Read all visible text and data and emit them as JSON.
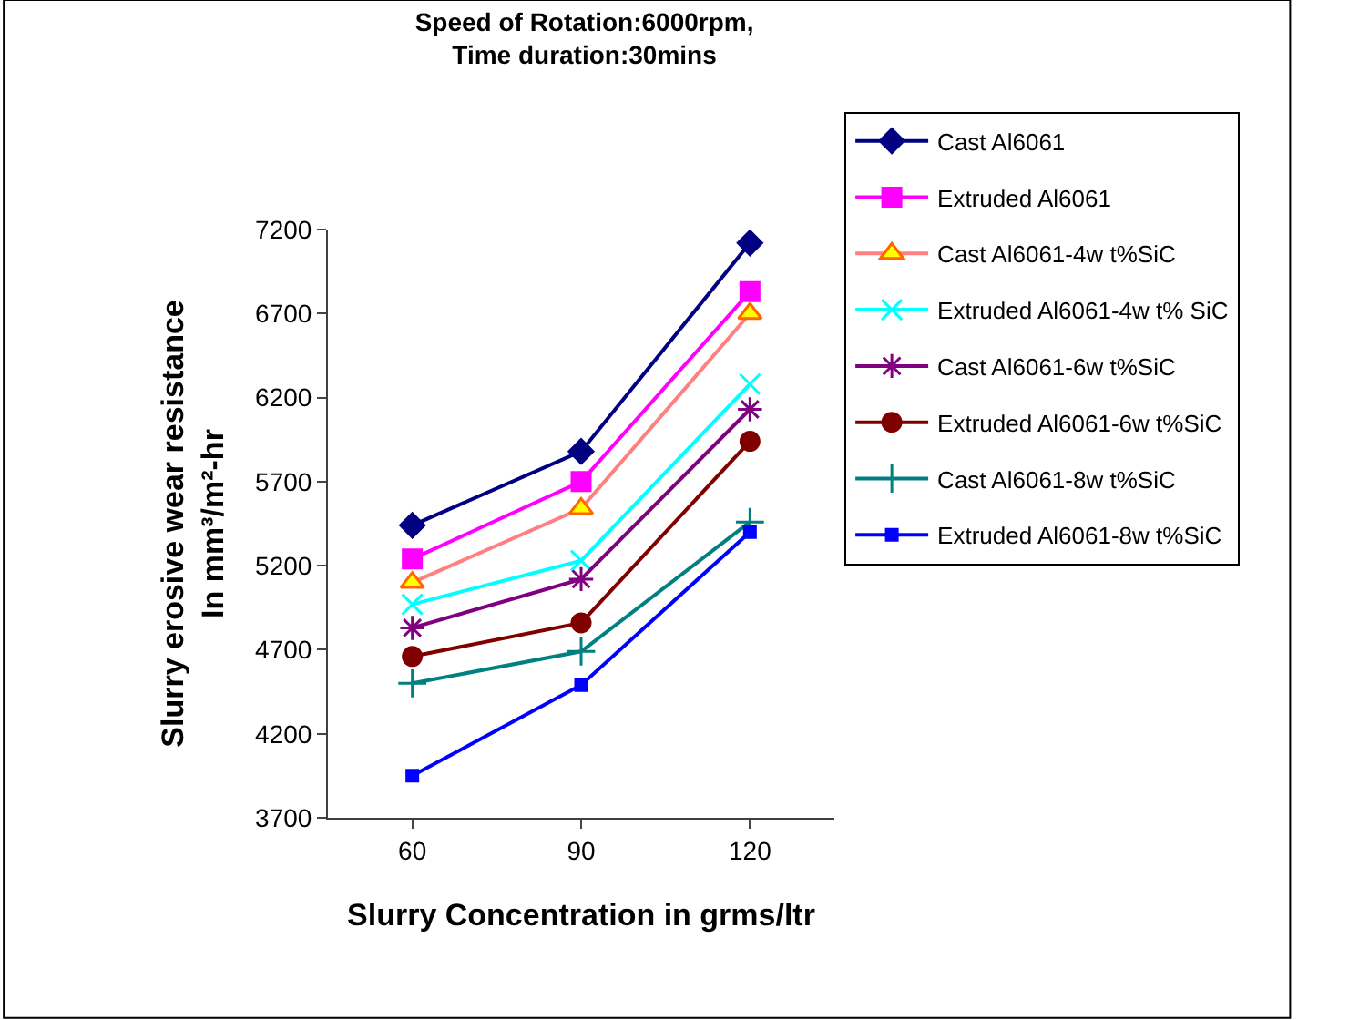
{
  "chart_data": {
    "type": "line",
    "title": "Speed of Rotation:6000rpm,\nTime duration:30mins",
    "xlabel": "Slurry Concentration in grms/ltr",
    "ylabel": "Slurry erosive wear resistance\nIn mm³/m²-hr",
    "categories": [
      "60",
      "90",
      "120"
    ],
    "ylim": [
      3700,
      7200
    ],
    "yticks": [
      3700,
      4200,
      4700,
      5200,
      5700,
      6200,
      6700,
      7200
    ],
    "grid": false,
    "legend": "right",
    "series": [
      {
        "name": "Cast Al6061",
        "color": "#000080",
        "marker": "diamond",
        "values": [
          5440,
          5880,
          7120
        ]
      },
      {
        "name": "Extruded Al6061",
        "color": "#ff00ff",
        "marker": "square",
        "values": [
          5240,
          5700,
          6830
        ]
      },
      {
        "name": "Cast Al6061-4w t%SiC",
        "color": "#ff8080",
        "marker": "triangle",
        "values": [
          5100,
          5540,
          6700
        ]
      },
      {
        "name": "Extruded Al6061-4w t% SiC",
        "color": "#00ffff",
        "marker": "cross",
        "values": [
          4970,
          5230,
          6280
        ]
      },
      {
        "name": "Cast Al6061-6w t%SiC",
        "color": "#800080",
        "marker": "cross",
        "values": [
          4830,
          5120,
          6130
        ]
      },
      {
        "name": "Extruded Al6061-6w t%SiC",
        "color": "#800000",
        "marker": "circle",
        "values": [
          4660,
          4860,
          5940
        ]
      },
      {
        "name": "Cast Al6061-8w t%SiC",
        "color": "#008080",
        "marker": "cross",
        "values": [
          4500,
          4690,
          5460
        ]
      },
      {
        "name": "Extruded Al6061-8w t%SiC",
        "color": "#0000ff",
        "marker": "square",
        "values": [
          3950,
          4490,
          5400
        ]
      }
    ]
  }
}
